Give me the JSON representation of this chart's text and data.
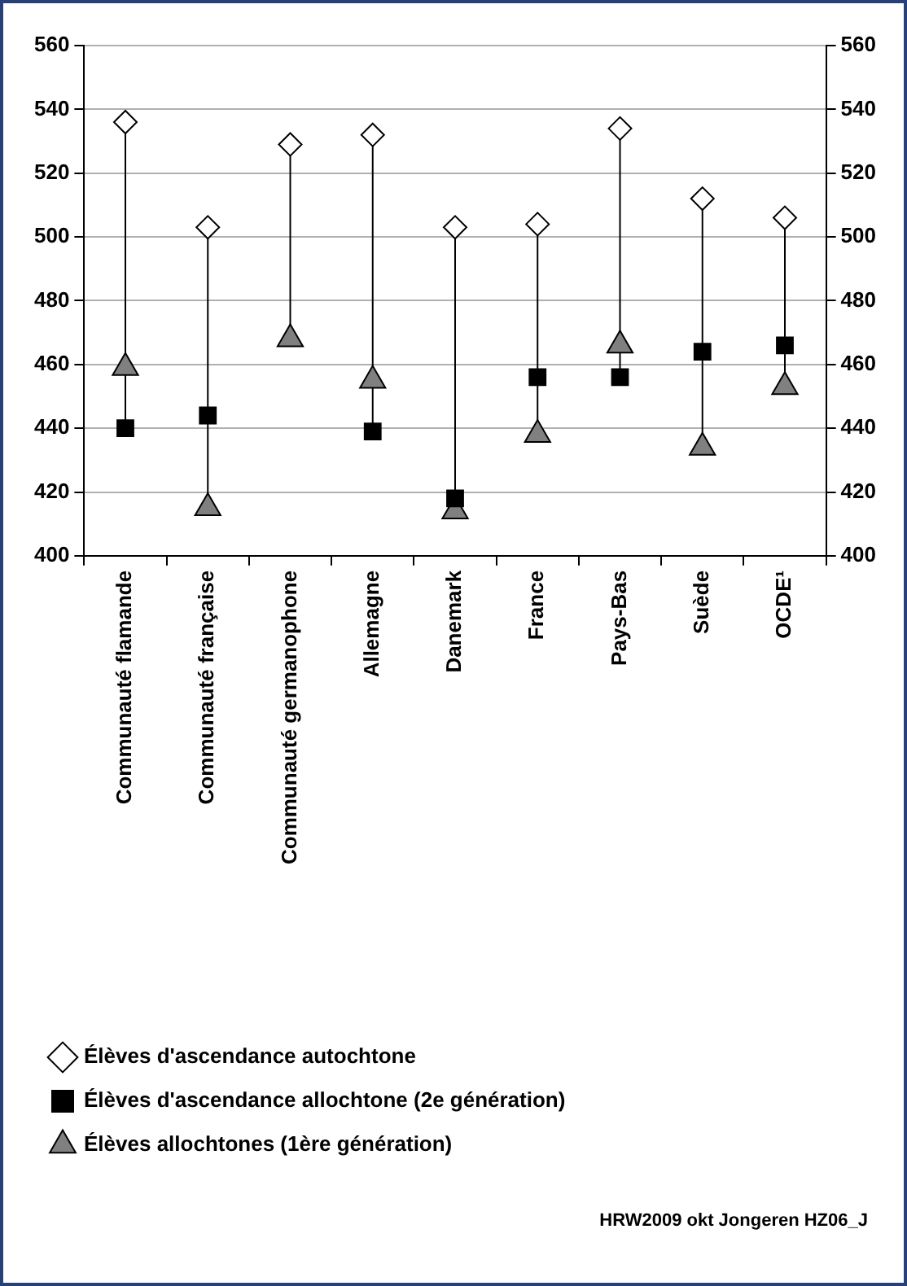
{
  "chart_data": {
    "type": "scatter",
    "categories": [
      "Communauté flamande",
      "Communauté française",
      "Communauté germanophone",
      "Allemagne",
      "Danemark",
      "France",
      "Pays-Bas",
      "Suède",
      "OCDE¹"
    ],
    "series": [
      {
        "name": "Élèves d'ascendance autochtone",
        "color": "#ffffff",
        "marker": "diamond",
        "values": [
          536,
          503,
          529,
          532,
          503,
          504,
          534,
          512,
          506
        ]
      },
      {
        "name": "Élèves d'ascendance allochtone (2e génération)",
        "color": "#000000",
        "marker": "square",
        "values": [
          440,
          444,
          null,
          439,
          418,
          456,
          456,
          464,
          466
        ]
      },
      {
        "name": "Élèves allochtones (1ère génération)",
        "color": "#808080",
        "marker": "triangle",
        "values": [
          459,
          415,
          468,
          455,
          414,
          438,
          466,
          434,
          453
        ]
      }
    ],
    "ylim": [
      400,
      560
    ],
    "yticks": [
      400,
      420,
      440,
      460,
      480,
      500,
      520,
      540,
      560
    ],
    "y2lim": [
      400,
      560
    ],
    "y2ticks": [
      400,
      420,
      440,
      460,
      480,
      500,
      520,
      540,
      560
    ],
    "grid": "y",
    "legend": "bottom left",
    "annotations": [
      "HRW2009 okt Jongeren HZ06_J"
    ]
  }
}
